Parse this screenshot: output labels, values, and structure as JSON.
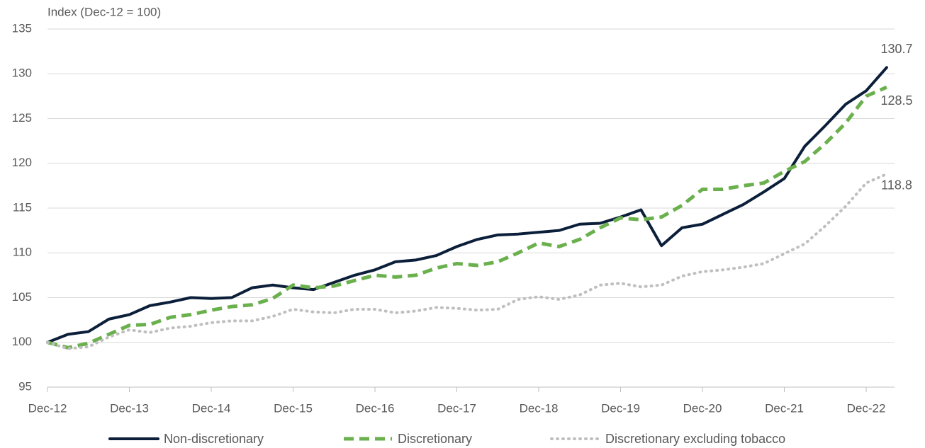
{
  "chart_data": {
    "type": "line",
    "y_axis_title": "Index (Dec-12 = 100)",
    "categories": [
      "Dec-12",
      null,
      null,
      null,
      "Dec-13",
      null,
      null,
      null,
      "Dec-14",
      null,
      null,
      null,
      "Dec-15",
      null,
      null,
      null,
      "Dec-16",
      null,
      null,
      null,
      "Dec-17",
      null,
      null,
      null,
      "Dec-18",
      null,
      null,
      null,
      "Dec-19",
      null,
      null,
      null,
      "Dec-20",
      null,
      null,
      null,
      "Dec-21",
      null,
      null,
      null,
      "Dec-22",
      null
    ],
    "series": [
      {
        "name": "Non-discretionary",
        "color": "#0c1f3a",
        "style": "solid",
        "values": [
          100,
          100.9,
          101.2,
          102.6,
          103.1,
          104.1,
          104.5,
          105.0,
          104.9,
          105.0,
          106.1,
          106.4,
          106.1,
          105.9,
          106.7,
          107.5,
          108.1,
          109.0,
          109.2,
          109.7,
          110.7,
          111.5,
          112.0,
          112.1,
          112.3,
          112.5,
          113.2,
          113.3,
          114.0,
          114.8,
          110.8,
          112.8,
          113.2,
          114.3,
          115.4,
          116.8,
          118.3,
          121.9,
          124.2,
          126.6,
          128.1,
          130.7
        ]
      },
      {
        "name": "Discretionary",
        "color": "#6ab04c",
        "style": "dashed",
        "values": [
          100,
          99.4,
          99.9,
          100.9,
          101.9,
          102.0,
          102.8,
          103.1,
          103.6,
          104.0,
          104.2,
          104.9,
          106.4,
          106.1,
          106.3,
          106.9,
          107.5,
          107.3,
          107.5,
          108.3,
          108.8,
          108.6,
          109.0,
          110.0,
          111.1,
          110.7,
          111.5,
          112.8,
          113.9,
          113.7,
          114.0,
          115.3,
          117.1,
          117.1,
          117.5,
          117.8,
          119.1,
          120.2,
          122.2,
          124.5,
          127.5,
          128.5
        ]
      },
      {
        "name": "Discretionary excluding tobacco",
        "color": "#bfbfbf",
        "style": "dotted",
        "values": [
          100,
          99.3,
          99.5,
          100.6,
          101.4,
          101.1,
          101.6,
          101.8,
          102.2,
          102.4,
          102.4,
          102.9,
          103.7,
          103.4,
          103.3,
          103.7,
          103.7,
          103.3,
          103.5,
          103.9,
          103.8,
          103.6,
          103.7,
          104.8,
          105.1,
          104.8,
          105.3,
          106.4,
          106.6,
          106.2,
          106.4,
          107.4,
          107.9,
          108.1,
          108.4,
          108.8,
          109.9,
          111.0,
          113.0,
          115.2,
          117.8,
          118.8
        ]
      }
    ],
    "ylim": [
      95,
      135
    ],
    "yticks": [
      95,
      100,
      105,
      110,
      115,
      120,
      125,
      130,
      135
    ],
    "grid": true,
    "legend": "bottom"
  }
}
